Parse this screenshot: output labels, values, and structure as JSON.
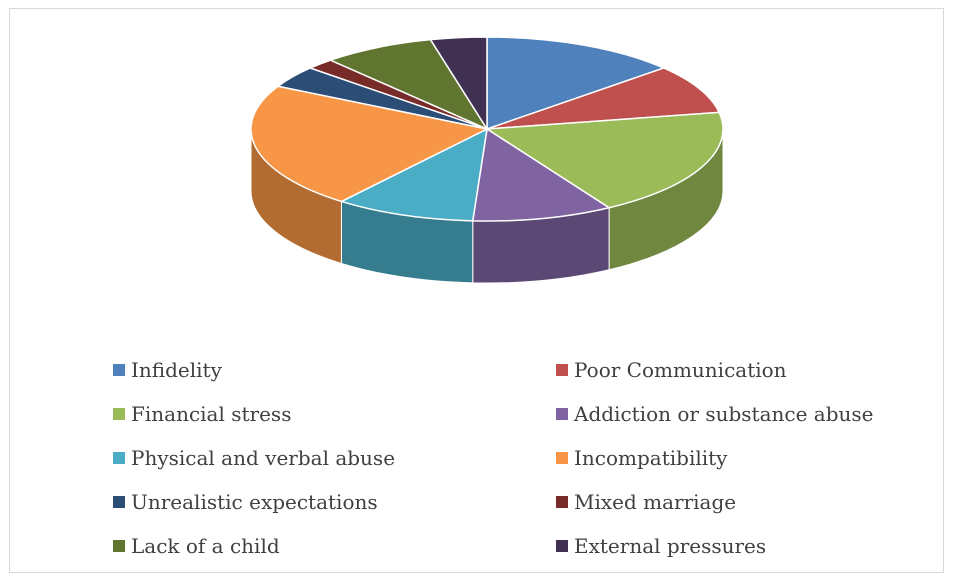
{
  "chart_data": {
    "type": "pie",
    "title": "",
    "style": "3d",
    "legend_position": "bottom",
    "categories": [
      "Infidelity",
      "Poor Communication",
      "Financial stress",
      "Addiction or substance abuse",
      "Physical and verbal abuse",
      "Incompatibility",
      "Unrealistic expectations",
      "Mixed marriage",
      "Lack of a child",
      "External pressures"
    ],
    "values": [
      14,
      9,
      20,
      10,
      10,
      23,
      4,
      2,
      8,
      4
    ],
    "colors": [
      "#4f81bd",
      "#c0504d",
      "#9bbb59",
      "#8064a2",
      "#4bacc6",
      "#f79646",
      "#2c4d75",
      "#772c2a",
      "#5f7530",
      "#403152"
    ]
  }
}
